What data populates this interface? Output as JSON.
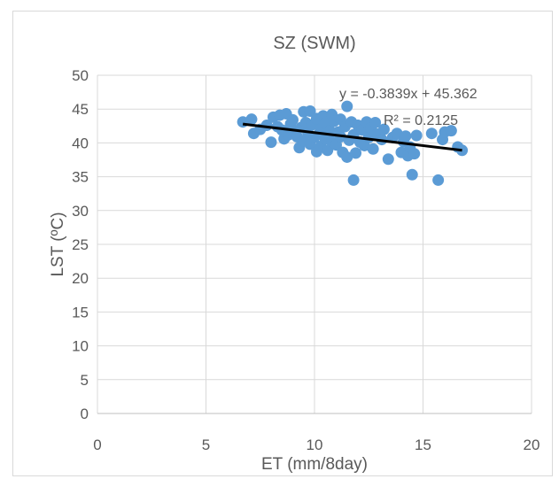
{
  "chart_data": {
    "type": "scatter",
    "title": "SZ (SWM)",
    "xlabel": "ET (mm/8day)",
    "ylabel": "LST (ºC)",
    "xlim": [
      0,
      20
    ],
    "ylim": [
      0,
      50
    ],
    "xticks": [
      "0",
      "5",
      "10",
      "15",
      "20"
    ],
    "yticks": [
      "0",
      "5",
      "10",
      "15",
      "20",
      "25",
      "30",
      "35",
      "40",
      "45",
      "50"
    ],
    "grid": true,
    "marker_color": "#5b9bd5",
    "trendline": {
      "slope": -0.3839,
      "intercept": 45.362,
      "x_range": [
        6.7,
        16.8
      ],
      "color": "#000000",
      "equation": "y = -0.3839x + 45.362",
      "r_squared": "R² = 0.2125"
    },
    "points": [
      [
        6.7,
        43.1
      ],
      [
        7.1,
        43.5
      ],
      [
        7.2,
        41.4
      ],
      [
        7.5,
        42.0
      ],
      [
        7.8,
        42.6
      ],
      [
        8.0,
        40.1
      ],
      [
        8.1,
        43.8
      ],
      [
        8.3,
        42.4
      ],
      [
        8.4,
        44.1
      ],
      [
        8.5,
        41.9
      ],
      [
        8.6,
        40.6
      ],
      [
        8.7,
        44.3
      ],
      [
        8.8,
        41.2
      ],
      [
        8.9,
        42.8
      ],
      [
        9.0,
        43.4
      ],
      [
        9.1,
        41.7
      ],
      [
        9.2,
        40.9
      ],
      [
        9.3,
        39.3
      ],
      [
        9.4,
        42.3
      ],
      [
        9.5,
        44.6
      ],
      [
        9.5,
        40.3
      ],
      [
        9.6,
        43.0
      ],
      [
        9.7,
        41.5
      ],
      [
        9.8,
        44.7
      ],
      [
        9.8,
        39.8
      ],
      [
        9.9,
        42.7
      ],
      [
        10.0,
        40.8
      ],
      [
        10.1,
        43.6
      ],
      [
        10.1,
        38.7
      ],
      [
        10.2,
        41.3
      ],
      [
        10.3,
        42.1
      ],
      [
        10.3,
        39.5
      ],
      [
        10.4,
        44.0
      ],
      [
        10.5,
        40.6
      ],
      [
        10.5,
        42.9
      ],
      [
        10.6,
        38.9
      ],
      [
        10.7,
        41.8
      ],
      [
        10.8,
        44.2
      ],
      [
        10.8,
        40.2
      ],
      [
        10.9,
        43.2
      ],
      [
        11.0,
        39.7
      ],
      [
        11.1,
        41.6
      ],
      [
        11.2,
        43.5
      ],
      [
        11.2,
        40.9
      ],
      [
        11.3,
        38.6
      ],
      [
        11.4,
        42.4
      ],
      [
        11.5,
        45.4
      ],
      [
        11.5,
        37.9
      ],
      [
        11.6,
        40.4
      ],
      [
        11.7,
        43.1
      ],
      [
        11.8,
        34.5
      ],
      [
        11.8,
        41.2
      ],
      [
        11.9,
        38.5
      ],
      [
        12.0,
        42.6
      ],
      [
        12.1,
        40.1
      ],
      [
        12.2,
        41.9
      ],
      [
        12.3,
        39.6
      ],
      [
        12.4,
        43.1
      ],
      [
        12.5,
        40.8
      ],
      [
        12.6,
        42.2
      ],
      [
        12.7,
        39.1
      ],
      [
        12.8,
        43.0
      ],
      [
        12.9,
        41.3
      ],
      [
        13.1,
        40.5
      ],
      [
        13.2,
        42.0
      ],
      [
        13.4,
        37.6
      ],
      [
        13.6,
        40.8
      ],
      [
        13.8,
        41.4
      ],
      [
        14.0,
        38.6
      ],
      [
        14.1,
        40.2
      ],
      [
        14.2,
        41.0
      ],
      [
        14.3,
        38.1
      ],
      [
        14.4,
        39.4
      ],
      [
        14.5,
        35.3
      ],
      [
        14.6,
        38.4
      ],
      [
        14.7,
        41.1
      ],
      [
        15.4,
        41.4
      ],
      [
        15.7,
        34.5
      ],
      [
        15.9,
        40.5
      ],
      [
        16.0,
        41.6
      ],
      [
        16.3,
        41.8
      ],
      [
        16.6,
        39.4
      ],
      [
        16.8,
        38.9
      ]
    ]
  }
}
